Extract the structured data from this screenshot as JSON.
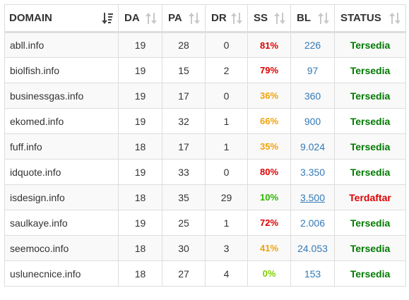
{
  "headers": {
    "domain": "DOMAIN",
    "da": "DA",
    "pa": "PA",
    "dr": "DR",
    "ss": "SS",
    "bl": "BL",
    "status": "STATUS"
  },
  "sort_icons": {
    "domain": "sort-alpha-desc-icon",
    "others": "sort-arrows-icon"
  },
  "colors": {
    "ss_high": "#dd0000",
    "ss_mid": "#f0a30a",
    "ss_low": "#2db500",
    "ss_zero": "#7fd000",
    "status_available": "#007a00",
    "status_registered": "#dd0000",
    "link": "#337ab7"
  },
  "rows": [
    {
      "domain": "abll.info",
      "da": "19",
      "pa": "28",
      "dr": "0",
      "ss": "81%",
      "ss_color": "#dd0000",
      "bl": "226",
      "status": "Tersedia",
      "registered": false
    },
    {
      "domain": "biolfish.info",
      "da": "19",
      "pa": "15",
      "dr": "2",
      "ss": "79%",
      "ss_color": "#dd0000",
      "bl": "97",
      "status": "Tersedia",
      "registered": false
    },
    {
      "domain": "businessgas.info",
      "da": "19",
      "pa": "17",
      "dr": "0",
      "ss": "36%",
      "ss_color": "#f0a30a",
      "bl": "360",
      "status": "Tersedia",
      "registered": false
    },
    {
      "domain": "ekomed.info",
      "da": "19",
      "pa": "32",
      "dr": "1",
      "ss": "66%",
      "ss_color": "#f0a30a",
      "bl": "900",
      "status": "Tersedia",
      "registered": false
    },
    {
      "domain": "fuff.info",
      "da": "18",
      "pa": "17",
      "dr": "1",
      "ss": "35%",
      "ss_color": "#f0a30a",
      "bl": "9.024",
      "status": "Tersedia",
      "registered": false
    },
    {
      "domain": "idquote.info",
      "da": "19",
      "pa": "33",
      "dr": "0",
      "ss": "80%",
      "ss_color": "#dd0000",
      "bl": "3.350",
      "status": "Tersedia",
      "registered": false
    },
    {
      "domain": "isdesign.info",
      "da": "18",
      "pa": "35",
      "dr": "29",
      "ss": "10%",
      "ss_color": "#2db500",
      "bl": "3.500",
      "bl_link": true,
      "status": "Terdaftar",
      "registered": true
    },
    {
      "domain": "saulkaye.info",
      "da": "19",
      "pa": "25",
      "dr": "1",
      "ss": "72%",
      "ss_color": "#dd0000",
      "bl": "2.006",
      "status": "Tersedia",
      "registered": false
    },
    {
      "domain": "seemoco.info",
      "da": "18",
      "pa": "30",
      "dr": "3",
      "ss": "41%",
      "ss_color": "#f0a30a",
      "bl": "24.053",
      "status": "Tersedia",
      "registered": false
    },
    {
      "domain": "uslunecnice.info",
      "da": "18",
      "pa": "27",
      "dr": "4",
      "ss": "0%",
      "ss_color": "#7fd000",
      "bl": "153",
      "status": "Tersedia",
      "registered": false
    }
  ]
}
